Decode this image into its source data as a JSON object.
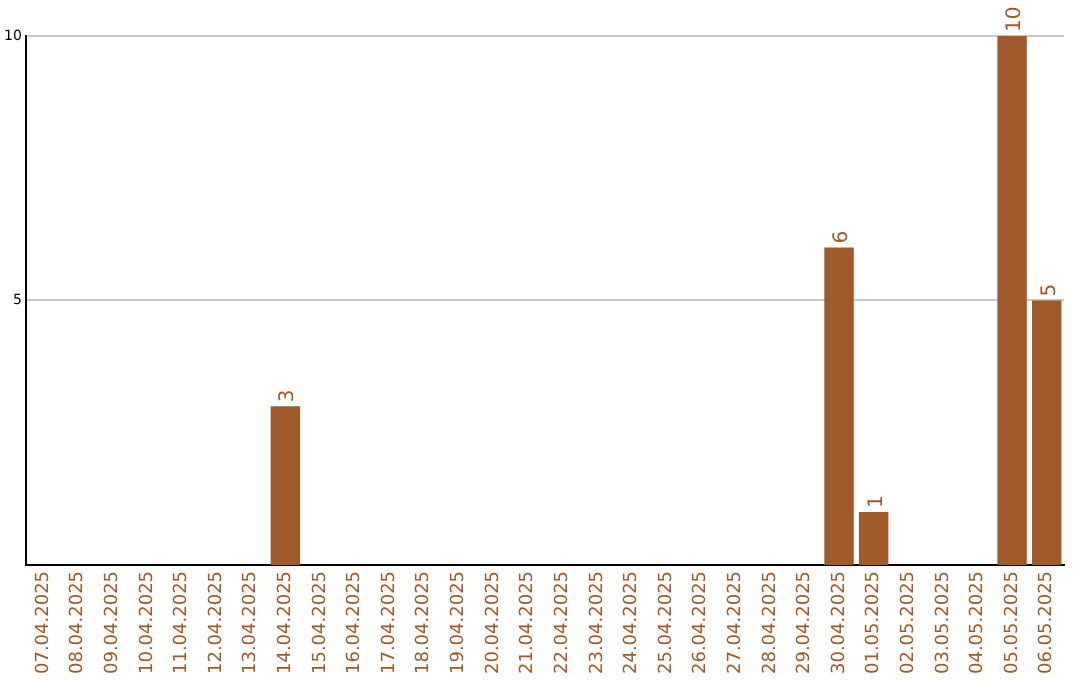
{
  "chart_data": {
    "type": "bar",
    "categories": [
      "07.04.2025",
      "08.04.2025",
      "09.04.2025",
      "10.04.2025",
      "11.04.2025",
      "12.04.2025",
      "13.04.2025",
      "14.04.2025",
      "15.04.2025",
      "16.04.2025",
      "17.04.2025",
      "18.04.2025",
      "19.04.2025",
      "20.04.2025",
      "21.04.2025",
      "22.04.2025",
      "23.04.2025",
      "24.04.2025",
      "25.04.2025",
      "26.04.2025",
      "27.04.2025",
      "28.04.2025",
      "29.04.2025",
      "30.04.2025",
      "01.05.2025",
      "02.05.2025",
      "03.05.2025",
      "04.05.2025",
      "05.05.2025",
      "06.05.2025"
    ],
    "values": [
      0,
      0,
      0,
      0,
      0,
      0,
      0,
      3,
      0,
      0,
      0,
      0,
      0,
      0,
      0,
      0,
      0,
      0,
      0,
      0,
      0,
      0,
      0,
      6,
      1,
      0,
      0,
      0,
      10,
      5
    ],
    "value_labels": [
      null,
      null,
      null,
      null,
      null,
      null,
      null,
      "3",
      null,
      null,
      null,
      null,
      null,
      null,
      null,
      null,
      null,
      null,
      null,
      null,
      null,
      null,
      null,
      "6",
      "1",
      null,
      null,
      null,
      "10",
      "5"
    ],
    "color": "#a0592a",
    "ylim": [
      0,
      10
    ],
    "yticks": [
      5,
      10
    ],
    "grid": "y",
    "legend": false
  }
}
